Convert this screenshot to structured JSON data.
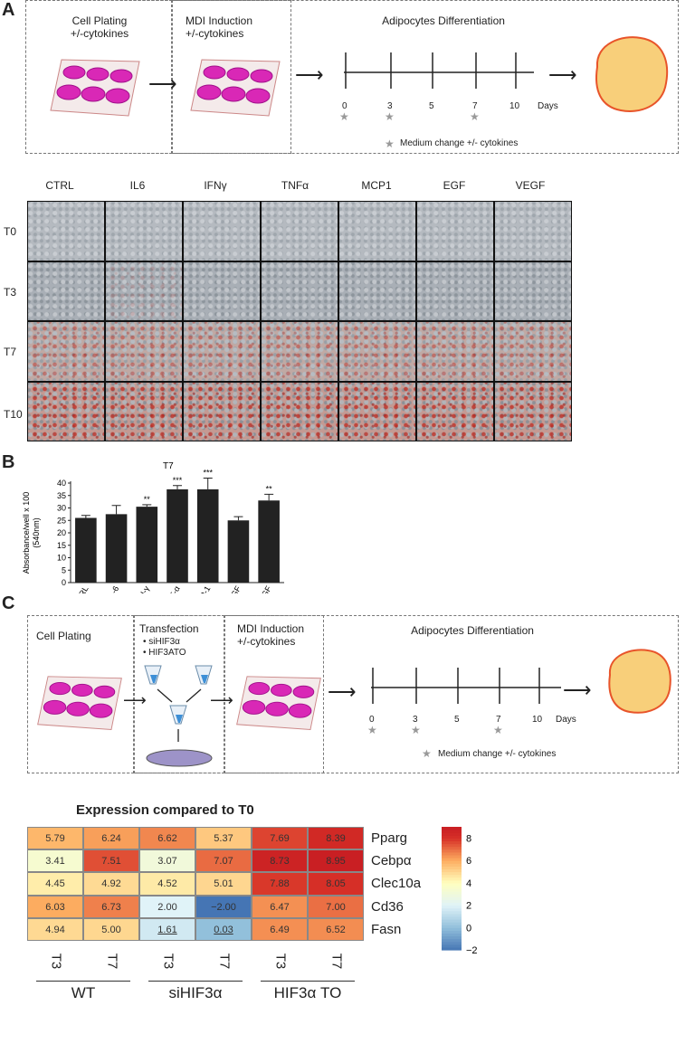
{
  "panelA": {
    "letter": "A",
    "step1": "Cell Plating\n+/-cytokines",
    "step2": "MDI Induction\n+/-cytokines",
    "differentiation_title": "Adipocytes Differentiation",
    "days_label": "Days",
    "ticks": [
      "0",
      "3",
      "5",
      "7",
      "10"
    ],
    "star_days": [
      "0",
      "3",
      "7"
    ],
    "legend": "Medium change +/- cytokines"
  },
  "micrographs": {
    "columns": [
      "CTRL",
      "IL6",
      "IFNγ",
      "TNFα",
      "MCP1",
      "EGF",
      "VEGF"
    ],
    "rows": [
      "T0",
      "T3",
      "T7",
      "T10"
    ]
  },
  "panelB": {
    "letter": "B",
    "chart_data": {
      "type": "bar",
      "title": "T7",
      "ylabel": "Absorbance/well x 100\n(540nm)",
      "ylim": [
        0,
        40
      ],
      "yticks": [
        0,
        5,
        10,
        15,
        20,
        25,
        30,
        35,
        40
      ],
      "categories": [
        "CTRL",
        "IL-6",
        "IFN-γ",
        "TNF-α",
        "MCP-1",
        "EGF",
        "VEGF"
      ],
      "values": [
        26,
        27.5,
        30.5,
        37.5,
        37.5,
        25,
        33
      ],
      "errors": [
        1,
        3.5,
        0.8,
        1.5,
        4.5,
        1.5,
        2.5
      ],
      "significance": [
        "",
        "",
        "**",
        "***",
        "***",
        "",
        "**"
      ],
      "bar_color": "#222222"
    }
  },
  "panelC": {
    "letter": "C",
    "step1": "Cell Plating",
    "step2_title": "Transfection",
    "step2_items": [
      "siHIF3α",
      "HIF3ATO"
    ],
    "step3": "MDI Induction\n+/-cytokines",
    "differentiation_title": "Adipocytes Differentiation",
    "days_label": "Days",
    "ticks": [
      "0",
      "3",
      "5",
      "7",
      "10"
    ],
    "star_days": [
      "0",
      "3",
      "7"
    ],
    "legend": "Medium change +/- cytokines"
  },
  "heatmap": {
    "chart_data": {
      "type": "heatmap",
      "title": "Expression compared to T0",
      "rows": [
        "Pparg",
        "Cebpα",
        "Clec10a",
        "Cd36",
        "Fasn"
      ],
      "columns": [
        "T3",
        "T7",
        "T3",
        "T7",
        "T3",
        "T7"
      ],
      "groups": [
        "WT",
        "siHIF3α",
        "HIF3α TO"
      ],
      "values": [
        [
          5.79,
          6.24,
          6.62,
          5.37,
          7.69,
          8.39
        ],
        [
          3.41,
          7.51,
          3.07,
          7.07,
          8.73,
          8.95
        ],
        [
          4.45,
          4.92,
          4.52,
          5.01,
          7.88,
          8.05
        ],
        [
          6.03,
          6.73,
          2.0,
          -2.0,
          6.47,
          7.0
        ],
        [
          4.94,
          5.0,
          1.61,
          0.03,
          6.49,
          6.52
        ]
      ],
      "display": [
        [
          "5.79",
          "6.24",
          "6.62",
          "5.37",
          "7.69",
          "8.39"
        ],
        [
          "3.41",
          "7.51",
          "3.07",
          "7.07",
          "8.73",
          "8.95"
        ],
        [
          "4.45",
          "4.92",
          "4.52",
          "5.01",
          "7.88",
          "8.05"
        ],
        [
          "6.03",
          "6.73",
          "2.00",
          "−2.00",
          "6.47",
          "7.00"
        ],
        [
          "4.94",
          "5.00",
          "1.61",
          "0.03",
          "6.49",
          "6.52"
        ]
      ],
      "underlined": [
        "1.61",
        "0.03"
      ],
      "colorbar_ticks": [
        "8",
        "6",
        "4",
        "2",
        "0",
        "−2"
      ],
      "colorbar_range": [
        -2,
        9
      ]
    }
  }
}
